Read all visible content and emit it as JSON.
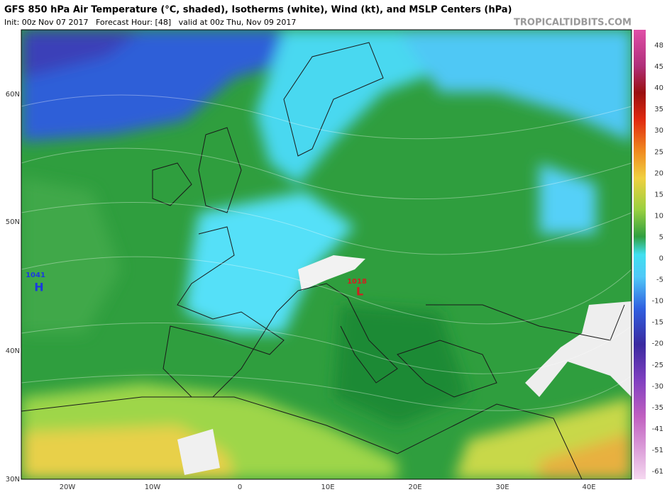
{
  "header": {
    "title": "GFS 850 hPa Air Temperature (°C, shaded), Isotherms (white), Wind (kt), and MSLP Centers (hPa)",
    "subtitle": "Init: 00z Nov 07 2017   Forecast Hour: [48]   valid at 00z Thu, Nov 09 2017",
    "source": "TROPICALTIDBITS.COM"
  },
  "map": {
    "latitude_labels": [
      "60N",
      "50N",
      "40N",
      "30N"
    ],
    "longitude_labels": [
      "20W",
      "10W",
      "0",
      "10E",
      "20E",
      "30E",
      "40E"
    ],
    "pressure_centers": [
      {
        "value": "1041",
        "symbol": "H"
      },
      {
        "value": "1018",
        "symbol": "L"
      }
    ]
  },
  "colorbar": {
    "labels": [
      "48",
      "45",
      "40",
      "35",
      "30",
      "25",
      "20",
      "15",
      "10",
      "5",
      "0",
      "-5",
      "-10",
      "-15",
      "-20",
      "-25",
      "-30",
      "-35",
      "-41",
      "-51",
      "-61"
    ]
  }
}
